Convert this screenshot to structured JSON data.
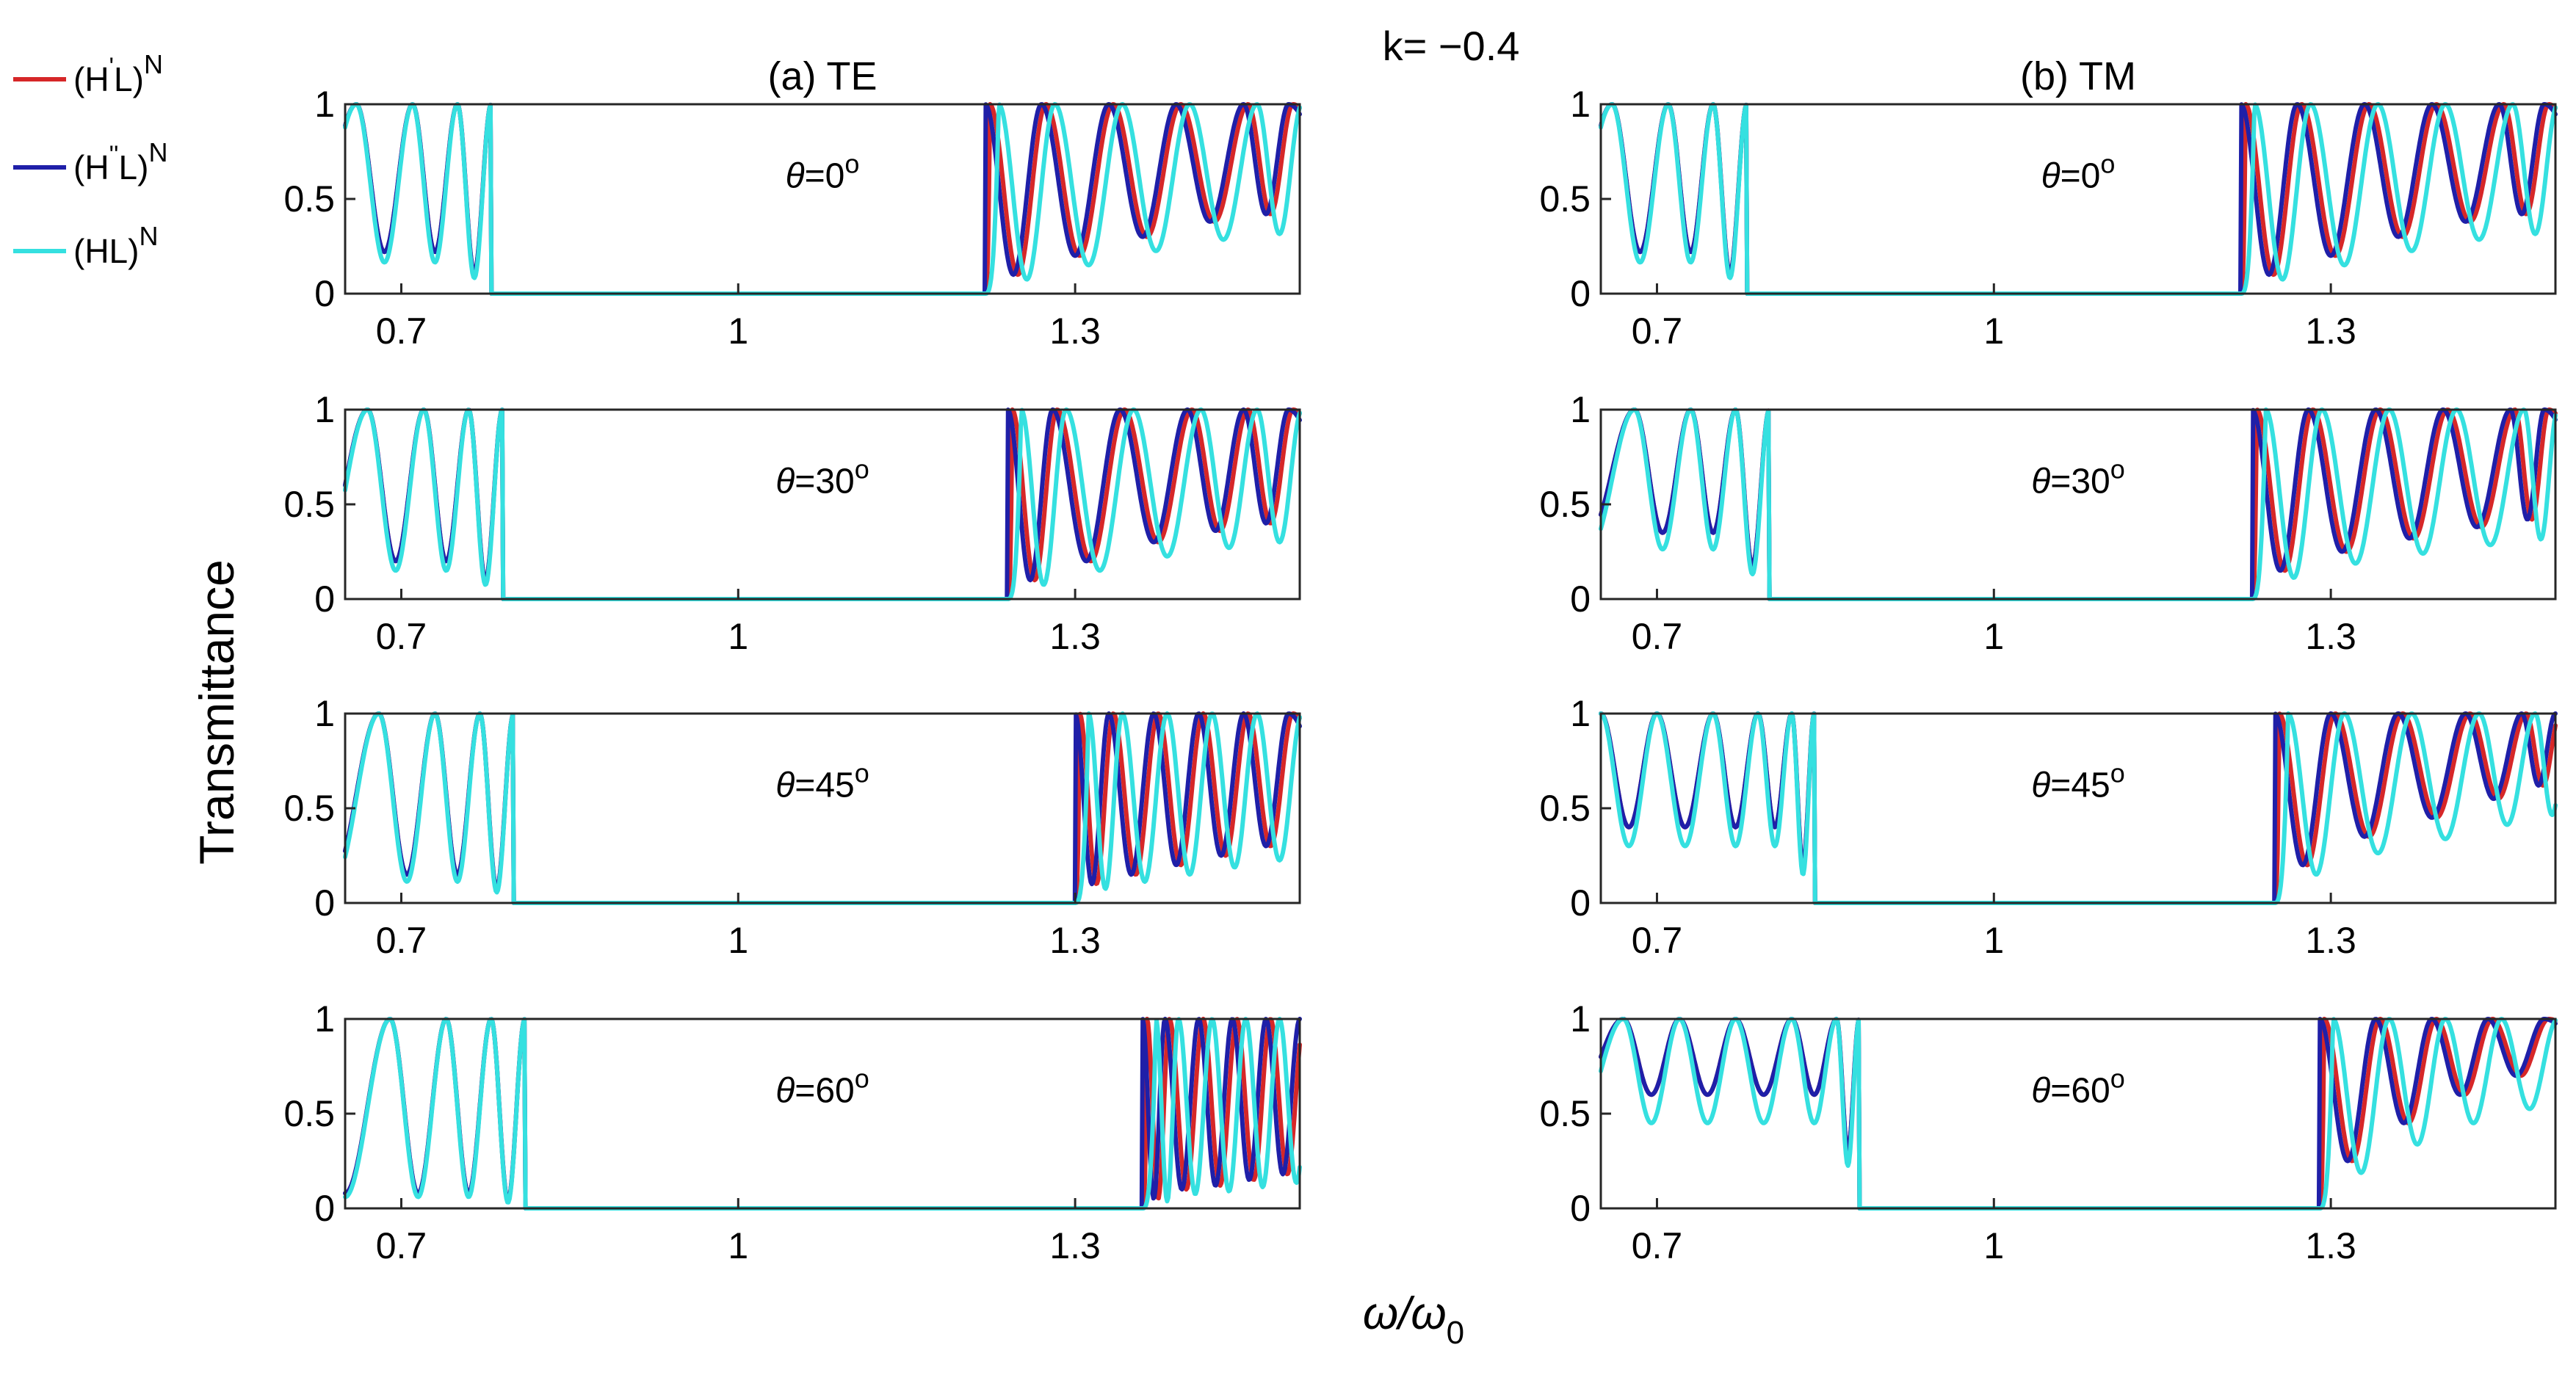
{
  "figure": {
    "title": "k= −0.4",
    "ylabel": "Transmittance",
    "xlabel": {
      "base": "ω/ω",
      "sub": "0"
    }
  },
  "legend": [
    {
      "name": "(H'L)^N",
      "base": "(H",
      "prime": "'",
      "rest": "L)",
      "sup": "N",
      "color": "#d62728"
    },
    {
      "name": "(H''L)^N",
      "base": "(H",
      "prime": "''",
      "rest": "L)",
      "sup": "N",
      "color": "#1f1fa8"
    },
    {
      "name": "(HL)^N",
      "base": "(HL)",
      "prime": "",
      "rest": "",
      "sup": "N",
      "color": "#35e0e0"
    }
  ],
  "chart_data": [
    {
      "id": "te-0",
      "column": "TE",
      "panel_title": "(a)  TE",
      "type": "line",
      "theta": 0,
      "theta_label": {
        "sym": "θ",
        "val": "=0",
        "sup": "o"
      },
      "xlim": [
        0.65,
        1.5
      ],
      "ylim": [
        0,
        1
      ],
      "xticks": [
        0.7,
        1,
        1.3
      ],
      "xtick_labels": [
        "0.7",
        "1",
        "1.3"
      ],
      "yticks": [
        0,
        0.5,
        1
      ],
      "ytick_labels": [
        "0",
        "0.5",
        "1"
      ],
      "gap": [
        0.78,
        1.22
      ],
      "low_peaks": [
        0.66,
        0.71,
        0.75,
        0.78
      ],
      "low_min": 0.22,
      "high_peaks": [
        1.22,
        1.27,
        1.33,
        1.39,
        1.45,
        1.49
      ],
      "high_min": [
        0.1,
        0.2,
        0.3,
        0.38,
        0.42,
        0.45
      ]
    },
    {
      "id": "te-30",
      "column": "TE",
      "panel_title": "",
      "type": "line",
      "theta": 30,
      "theta_label": {
        "sym": "θ",
        "val": "=30",
        "sup": "o"
      },
      "xlim": [
        0.65,
        1.5
      ],
      "ylim": [
        0,
        1
      ],
      "xticks": [
        0.7,
        1,
        1.3
      ],
      "xtick_labels": [
        "0.7",
        "1",
        "1.3"
      ],
      "yticks": [
        0,
        0.5,
        1
      ],
      "ytick_labels": [
        "0",
        "0.5",
        "1"
      ],
      "gap": [
        0.79,
        1.24
      ],
      "low_peaks": [
        0.67,
        0.72,
        0.76,
        0.79
      ],
      "low_min": 0.2,
      "high_peaks": [
        1.24,
        1.28,
        1.34,
        1.4,
        1.45,
        1.49
      ],
      "high_min": [
        0.1,
        0.2,
        0.3,
        0.36,
        0.4,
        0.42
      ]
    },
    {
      "id": "te-45",
      "column": "TE",
      "panel_title": "",
      "type": "line",
      "theta": 45,
      "theta_label": {
        "sym": "θ",
        "val": "=45",
        "sup": "o"
      },
      "xlim": [
        0.65,
        1.5
      ],
      "ylim": [
        0,
        1
      ],
      "xticks": [
        0.7,
        1,
        1.3
      ],
      "xtick_labels": [
        "0.7",
        "1",
        "1.3"
      ],
      "yticks": [
        0,
        0.5,
        1
      ],
      "ytick_labels": [
        "0",
        "0.5",
        "1"
      ],
      "gap": [
        0.8,
        1.3
      ],
      "low_peaks": [
        0.68,
        0.73,
        0.77,
        0.8
      ],
      "low_min": 0.15,
      "high_peaks": [
        1.3,
        1.33,
        1.37,
        1.41,
        1.45,
        1.49
      ],
      "high_min": [
        0.1,
        0.15,
        0.2,
        0.25,
        0.3,
        0.3
      ]
    },
    {
      "id": "te-60",
      "column": "TE",
      "panel_title": "",
      "type": "line",
      "theta": 60,
      "theta_label": {
        "sym": "θ",
        "val": "=60",
        "sup": "o"
      },
      "xlim": [
        0.65,
        1.5
      ],
      "ylim": [
        0,
        1
      ],
      "xticks": [
        0.7,
        1,
        1.3
      ],
      "xtick_labels": [
        "0.7",
        "1",
        "1.3"
      ],
      "yticks": [
        0,
        0.5,
        1
      ],
      "ytick_labels": [
        "0",
        "0.5",
        "1"
      ],
      "gap": [
        0.81,
        1.36
      ],
      "low_peaks": [
        0.69,
        0.74,
        0.78,
        0.81
      ],
      "low_min": 0.08,
      "high_peaks": [
        1.36,
        1.38,
        1.41,
        1.44,
        1.47,
        1.5
      ],
      "high_min": [
        0.05,
        0.1,
        0.12,
        0.15,
        0.18,
        0.2
      ]
    },
    {
      "id": "tm-0",
      "column": "TM",
      "panel_title": "(b)  TM",
      "type": "line",
      "theta": 0,
      "theta_label": {
        "sym": "θ",
        "val": "=0",
        "sup": "o"
      },
      "xlim": [
        0.65,
        1.5
      ],
      "ylim": [
        0,
        1
      ],
      "xticks": [
        0.7,
        1,
        1.3
      ],
      "xtick_labels": [
        "0.7",
        "1",
        "1.3"
      ],
      "yticks": [
        0,
        0.5,
        1
      ],
      "ytick_labels": [
        "0",
        "0.5",
        "1"
      ],
      "gap": [
        0.78,
        1.22
      ],
      "low_peaks": [
        0.66,
        0.71,
        0.75,
        0.78
      ],
      "low_min": 0.22,
      "high_peaks": [
        1.22,
        1.27,
        1.33,
        1.39,
        1.45,
        1.49
      ],
      "high_min": [
        0.1,
        0.2,
        0.3,
        0.38,
        0.42,
        0.45
      ]
    },
    {
      "id": "tm-30",
      "column": "TM",
      "panel_title": "",
      "type": "line",
      "theta": 30,
      "theta_label": {
        "sym": "θ",
        "val": "=30",
        "sup": "o"
      },
      "xlim": [
        0.65,
        1.5
      ],
      "ylim": [
        0,
        1
      ],
      "xticks": [
        0.7,
        1,
        1.3
      ],
      "xtick_labels": [
        "0.7",
        "1",
        "1.3"
      ],
      "yticks": [
        0,
        0.5,
        1
      ],
      "ytick_labels": [
        "0",
        "0.5",
        "1"
      ],
      "gap": [
        0.8,
        1.23
      ],
      "low_peaks": [
        0.68,
        0.73,
        0.77,
        0.8
      ],
      "low_min": 0.35,
      "high_peaks": [
        1.23,
        1.28,
        1.34,
        1.4,
        1.46,
        1.49
      ],
      "high_min": [
        0.15,
        0.25,
        0.32,
        0.38,
        0.42,
        0.45
      ]
    },
    {
      "id": "tm-45",
      "column": "TM",
      "panel_title": "",
      "type": "line",
      "theta": 45,
      "theta_label": {
        "sym": "θ",
        "val": "=45",
        "sup": "o"
      },
      "xlim": [
        0.65,
        1.5
      ],
      "ylim": [
        0,
        1
      ],
      "xticks": [
        0.7,
        1,
        1.3
      ],
      "xtick_labels": [
        "0.7",
        "1",
        "1.3"
      ],
      "yticks": [
        0,
        0.5,
        1
      ],
      "ytick_labels": [
        "0",
        "0.5",
        "1"
      ],
      "gap": [
        0.84,
        1.25
      ],
      "low_peaks": [
        0.65,
        0.7,
        0.75,
        0.79,
        0.82,
        0.84
      ],
      "low_min": 0.4,
      "high_peaks": [
        1.25,
        1.3,
        1.36,
        1.42,
        1.47,
        1.5
      ],
      "high_min": [
        0.2,
        0.35,
        0.45,
        0.55,
        0.62,
        0.68
      ]
    },
    {
      "id": "tm-60",
      "column": "TM",
      "panel_title": "",
      "type": "line",
      "theta": 60,
      "theta_label": {
        "sym": "θ",
        "val": "=60",
        "sup": "o"
      },
      "xlim": [
        0.65,
        1.5
      ],
      "ylim": [
        0,
        1
      ],
      "xticks": [
        0.7,
        1,
        1.3
      ],
      "xtick_labels": [
        "0.7",
        "1",
        "1.3"
      ],
      "yticks": [
        0,
        0.5,
        1
      ],
      "ytick_labels": [
        "0",
        "0.5",
        "1"
      ],
      "gap": [
        0.88,
        1.29
      ],
      "low_peaks": [
        0.67,
        0.72,
        0.77,
        0.82,
        0.86,
        0.88
      ],
      "low_min": 0.6,
      "high_peaks": [
        1.29,
        1.34,
        1.39,
        1.44,
        1.49
      ],
      "high_min": [
        0.25,
        0.45,
        0.6,
        0.7,
        0.75
      ]
    }
  ]
}
